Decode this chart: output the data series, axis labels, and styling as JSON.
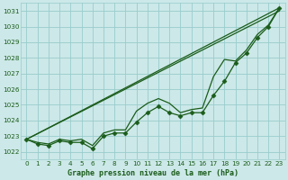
{
  "xlabel": "Graphe pression niveau de la mer (hPa)",
  "xlim": [
    -0.5,
    23.5
  ],
  "ylim": [
    1021.5,
    1031.5
  ],
  "yticks": [
    1022,
    1023,
    1024,
    1025,
    1026,
    1027,
    1028,
    1029,
    1030,
    1031
  ],
  "xticks": [
    0,
    1,
    2,
    3,
    4,
    5,
    6,
    7,
    8,
    9,
    10,
    11,
    12,
    13,
    14,
    15,
    16,
    17,
    18,
    19,
    20,
    21,
    22,
    23
  ],
  "bg_color": "#cce8e8",
  "grid_color": "#99cccc",
  "line_color": "#1a5c1a",
  "marker_data": [
    1022.8,
    1022.5,
    1022.4,
    1022.7,
    1022.6,
    1022.6,
    1022.2,
    1023.0,
    1023.2,
    1023.2,
    1023.9,
    1024.5,
    1024.9,
    1024.5,
    1024.3,
    1024.5,
    1024.5,
    1025.6,
    1026.5,
    1027.7,
    1028.3,
    1029.3,
    1030.0,
    1031.2
  ],
  "straight_upper": [
    1022.8,
    1031.2
  ],
  "straight_lower": [
    1022.8,
    1031.2
  ],
  "line2_data": [
    1022.8,
    1022.6,
    1022.5,
    1022.8,
    1022.7,
    1022.8,
    1022.4,
    1023.2,
    1023.4,
    1023.4,
    1024.6,
    1025.1,
    1025.4,
    1025.1,
    1024.5,
    1024.7,
    1024.8,
    1026.8,
    1027.9,
    1027.8,
    1028.5,
    1029.5,
    1030.1,
    1031.2
  ],
  "marker": "D",
  "markersize": 2.5,
  "linewidth": 0.9
}
